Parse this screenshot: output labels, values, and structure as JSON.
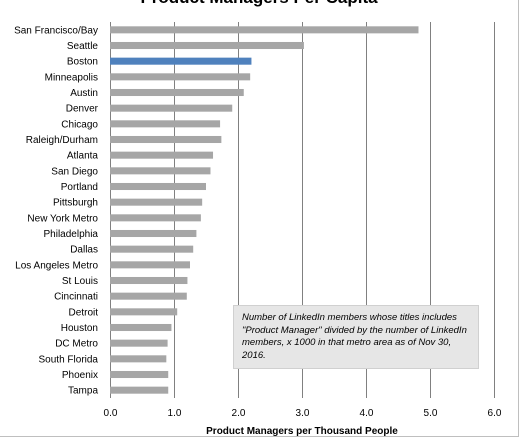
{
  "chart_data": {
    "type": "bar",
    "orientation": "horizontal",
    "title": "Product Managers Per Capita",
    "xlabel": "Product Managers per Thousand People",
    "xlim": [
      0,
      6
    ],
    "xticks": [
      "0.0",
      "1.0",
      "2.0",
      "3.0",
      "4.0",
      "5.0",
      "6.0"
    ],
    "grid": true,
    "categories": [
      "San Francisco/Bay",
      "Seattle",
      "Boston",
      "Minneapolis",
      "Austin",
      "Denver",
      "Chicago",
      "Raleigh/Durham",
      "Atlanta",
      "San Diego",
      "Portland",
      "Pittsburgh",
      "New York Metro",
      "Philadelphia",
      "Dallas",
      "Los Angeles Metro",
      "St Louis",
      "Cincinnati",
      "Detroit",
      "Houston",
      "DC Metro",
      "South Florida",
      "Phoenix",
      "Tampa"
    ],
    "values": [
      4.82,
      3.03,
      2.21,
      2.19,
      2.09,
      1.91,
      1.72,
      1.74,
      1.61,
      1.57,
      1.5,
      1.44,
      1.42,
      1.35,
      1.3,
      1.25,
      1.21,
      1.2,
      1.05,
      0.96,
      0.9,
      0.88,
      0.91,
      0.91
    ],
    "highlight": "Boston",
    "colors": {
      "bar": "#a6a6a6",
      "highlight": "#4f81bd",
      "grid": "#808080"
    },
    "annotation": "Number of LinkedIn members  whose titles includes \"Product Manager\"  divided by the number of LinkedIn members, x 1000  in that metro area as of Nov 30, 2016."
  }
}
